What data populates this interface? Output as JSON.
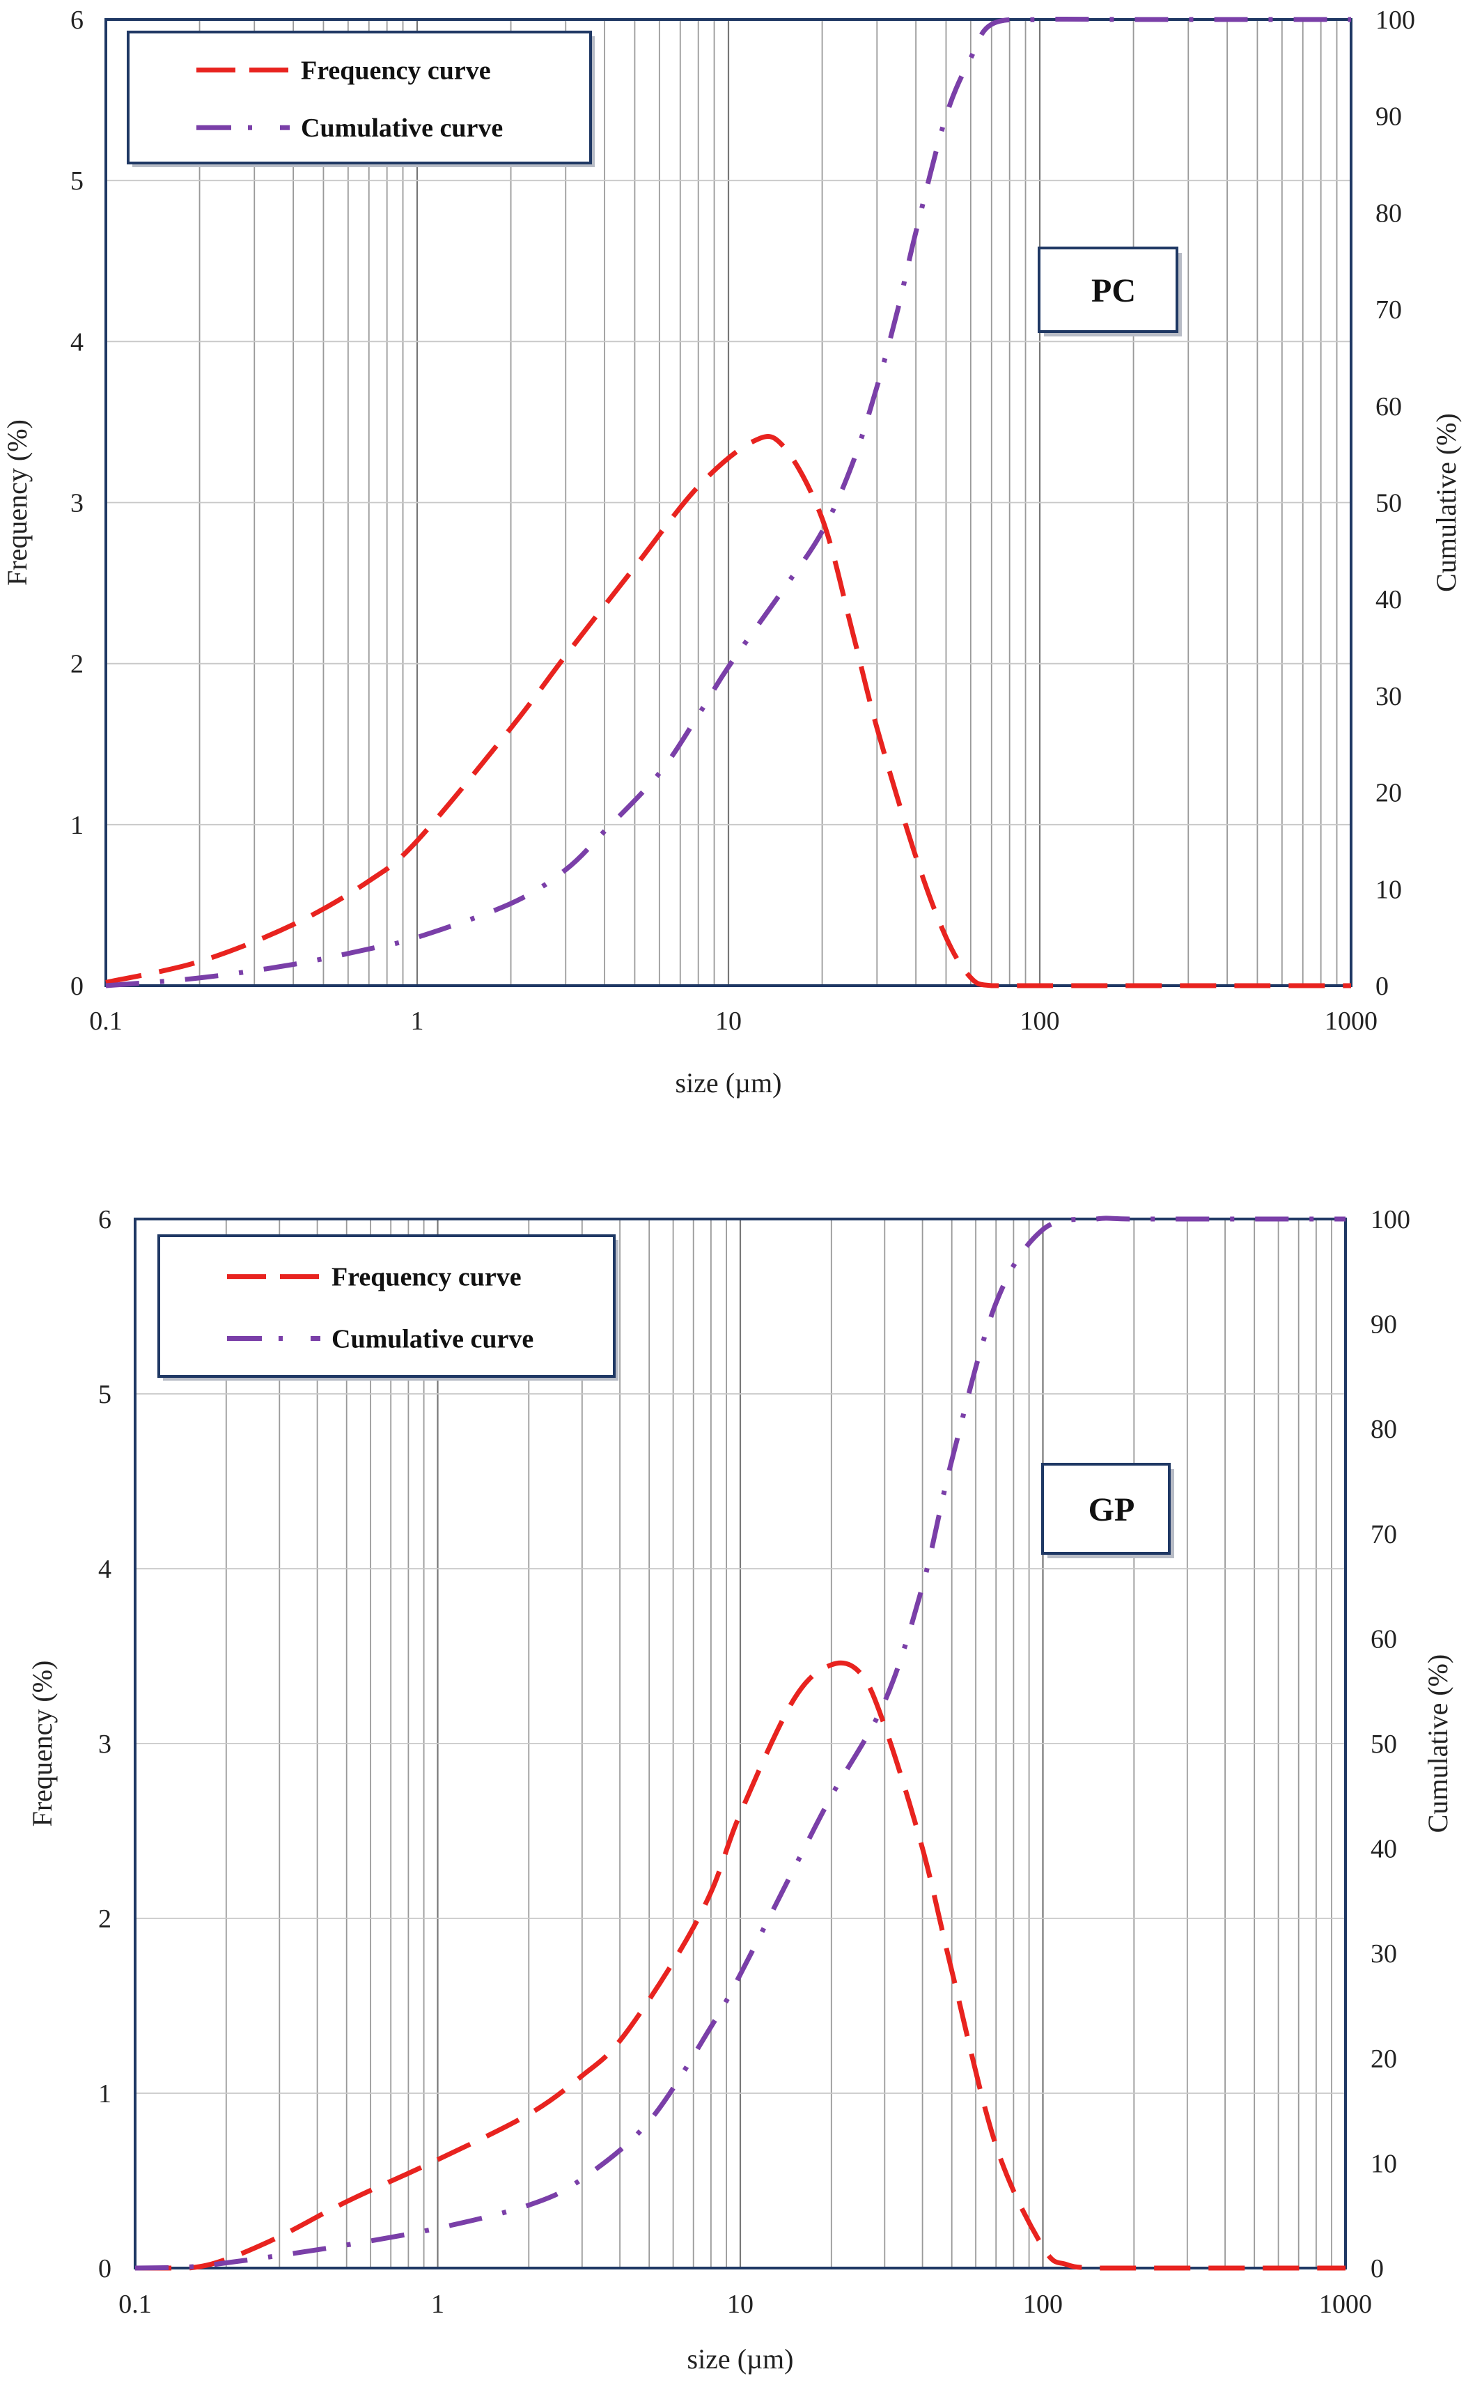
{
  "chart_data": [
    {
      "type": "line",
      "panel_label": "PC",
      "xlabel": "size (µm)",
      "ylabel": "Frequency (%)",
      "y2label": "Cumulative (%)",
      "xscale": "log",
      "xlim": [
        0.1,
        1000
      ],
      "ylim": [
        0,
        6
      ],
      "y2lim": [
        0,
        100
      ],
      "x_ticks": [
        "0.1",
        "1",
        "10",
        "100",
        "1000"
      ],
      "y_ticks": [
        "0",
        "1",
        "2",
        "3",
        "4",
        "5",
        "6"
      ],
      "y2_ticks": [
        "0",
        "10",
        "20",
        "30",
        "40",
        "50",
        "60",
        "70",
        "80",
        "90",
        "100"
      ],
      "grid": "vertical log gridlines, horizontal major gridlines",
      "legend_position": "top-left",
      "colors": {
        "frequency": "#e8231f",
        "cumulative": "#7a3fa8"
      },
      "series": [
        {
          "name": "Frequency curve",
          "axis": "left",
          "style": "dashed",
          "x": [
            0.1,
            0.2,
            0.4,
            0.7,
            1,
            2,
            3,
            5,
            8,
            12,
            15,
            20,
            25,
            30,
            40,
            50,
            60,
            70,
            100,
            200,
            500,
            1000
          ],
          "values": [
            0.02,
            0.15,
            0.38,
            0.65,
            0.9,
            1.6,
            2.05,
            2.6,
            3.1,
            3.38,
            3.35,
            2.9,
            2.2,
            1.6,
            0.8,
            0.3,
            0.05,
            0.0,
            0.0,
            0.0,
            0.0,
            0.0
          ]
        },
        {
          "name": "Cumulative curve",
          "axis": "right",
          "style": "dash-dot",
          "x": [
            0.1,
            0.2,
            0.4,
            0.7,
            1,
            2,
            3,
            4,
            6,
            8,
            10,
            15,
            20,
            25,
            30,
            35,
            40,
            50,
            60,
            70,
            100,
            200,
            500,
            1000
          ],
          "values": [
            0,
            0.8,
            2.2,
            3.8,
            5.0,
            8.5,
            12.0,
            16.0,
            22.0,
            28.0,
            33.0,
            41.0,
            47.0,
            54.0,
            62.0,
            70.0,
            78.0,
            90.0,
            96.0,
            99.5,
            100.0,
            100.0,
            100.0,
            100.0
          ]
        }
      ]
    },
    {
      "type": "line",
      "panel_label": "GP",
      "xlabel": "size (µm)",
      "ylabel": "Frequency (%)",
      "y2label": "Cumulative (%)",
      "xscale": "log",
      "xlim": [
        0.1,
        1000
      ],
      "ylim": [
        0,
        6
      ],
      "y2lim": [
        0,
        100
      ],
      "x_ticks": [
        "0.1",
        "1",
        "10",
        "100",
        "1000"
      ],
      "y_ticks": [
        "0",
        "1",
        "2",
        "3",
        "4",
        "5",
        "6"
      ],
      "y2_ticks": [
        "0",
        "10",
        "20",
        "30",
        "40",
        "50",
        "60",
        "70",
        "80",
        "90",
        "100"
      ],
      "grid": "vertical log gridlines, horizontal major gridlines",
      "legend_position": "top-left",
      "colors": {
        "frequency": "#e8231f",
        "cumulative": "#7a3fa8"
      },
      "series": [
        {
          "name": "Frequency curve",
          "axis": "left",
          "style": "dashed",
          "x": [
            0.1,
            0.15,
            0.2,
            0.3,
            0.5,
            1,
            2,
            3,
            4,
            6,
            8,
            10,
            15,
            20,
            25,
            30,
            40,
            50,
            70,
            100,
            120,
            150,
            200,
            500,
            1000
          ],
          "values": [
            0,
            0.0,
            0.05,
            0.18,
            0.38,
            0.62,
            0.88,
            1.1,
            1.3,
            1.75,
            2.15,
            2.6,
            3.25,
            3.45,
            3.4,
            3.1,
            2.4,
            1.7,
            0.7,
            0.12,
            0.02,
            0.0,
            0.0,
            0.0,
            0.0
          ]
        },
        {
          "name": "Cumulative curve",
          "axis": "right",
          "style": "dash-dot",
          "x": [
            0.1,
            0.15,
            0.2,
            0.3,
            0.5,
            1,
            2,
            3,
            5,
            8,
            10,
            15,
            20,
            30,
            40,
            50,
            70,
            100,
            150,
            200,
            500,
            1000
          ],
          "values": [
            0,
            0.1,
            0.5,
            1.2,
            2.2,
            3.8,
            6.0,
            8.5,
            14.0,
            23.0,
            28.0,
            38.0,
            45.0,
            54.0,
            65.0,
            77.0,
            92.0,
            99.0,
            100.0,
            100.0,
            100.0,
            100.0
          ]
        }
      ]
    }
  ]
}
